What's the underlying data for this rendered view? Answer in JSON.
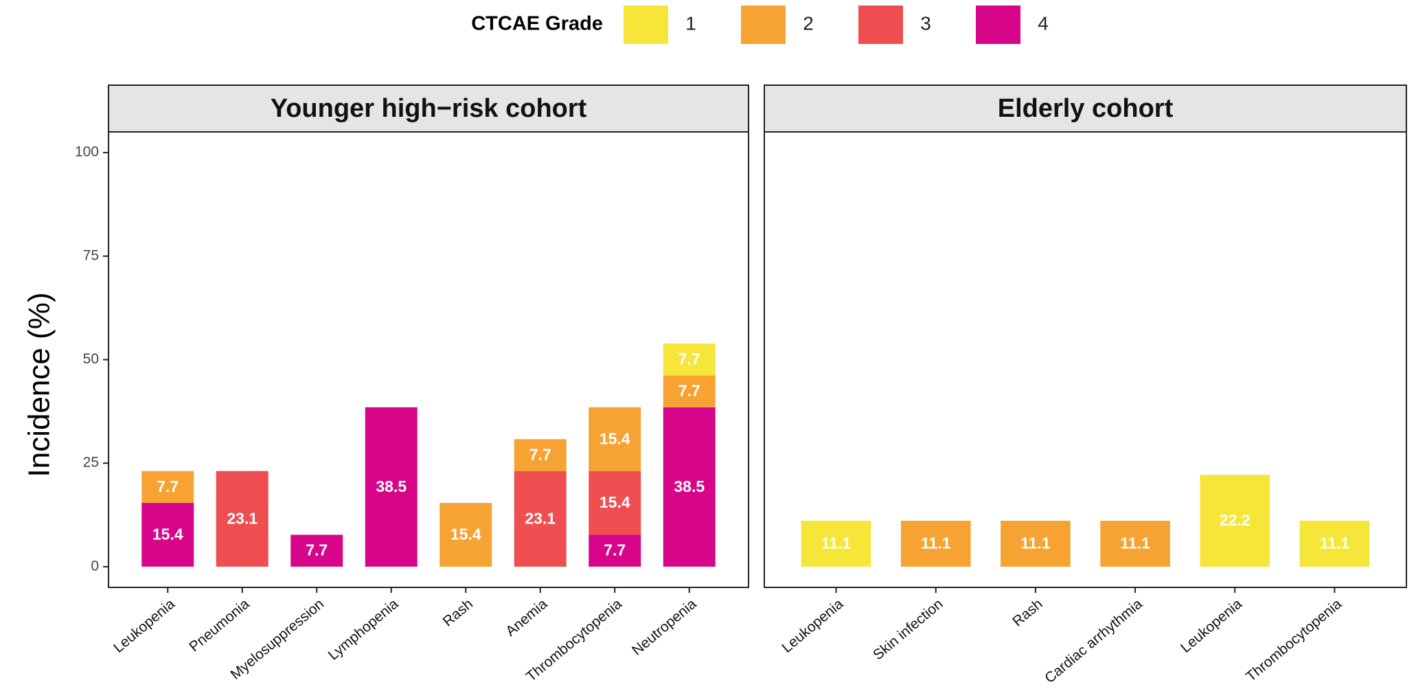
{
  "chart_data": [
    {
      "type": "bar",
      "stacked": true,
      "title": "Younger high−risk cohort",
      "legend_title": "CTCAE Grade",
      "ylabel": "Incidence (%)",
      "categories": [
        "Leukopenia",
        "Pneumonia",
        "Myelosuppression",
        "Lymphopenia",
        "Rash",
        "Anemia",
        "Thrombocytopenia",
        "Neutropenia"
      ],
      "series": [
        {
          "name": "1",
          "color": "#f7e63a",
          "values": [
            null,
            null,
            null,
            null,
            null,
            null,
            null,
            7.7
          ]
        },
        {
          "name": "2",
          "color": "#f6a333",
          "values": [
            7.7,
            null,
            null,
            null,
            15.4,
            7.7,
            15.4,
            7.7
          ]
        },
        {
          "name": "3",
          "color": "#ef4e50",
          "values": [
            null,
            23.1,
            null,
            null,
            null,
            23.1,
            15.4,
            null
          ]
        },
        {
          "name": "4",
          "color": "#d6058a",
          "values": [
            15.4,
            null,
            7.7,
            38.5,
            null,
            null,
            7.7,
            38.5
          ]
        }
      ],
      "ylim": [
        -5,
        105
      ],
      "yticks": [
        0,
        25,
        50,
        75,
        100
      ]
    },
    {
      "type": "bar",
      "stacked": true,
      "title": "Elderly cohort",
      "categories": [
        "Leukopenia",
        "Skin infection",
        "Rash",
        "Cardiac arrhythmia",
        "Leukopenia",
        "Thrombocytopenia"
      ],
      "series": [
        {
          "color": "#f7e63a",
          "values": [
            11.1,
            null,
            null,
            null,
            22.2,
            11.1
          ]
        },
        {
          "color": "#f6a333",
          "values": [
            null,
            11.1,
            11.1,
            11.1,
            null,
            null
          ]
        }
      ],
      "ylim": [
        -5,
        105
      ]
    }
  ]
}
